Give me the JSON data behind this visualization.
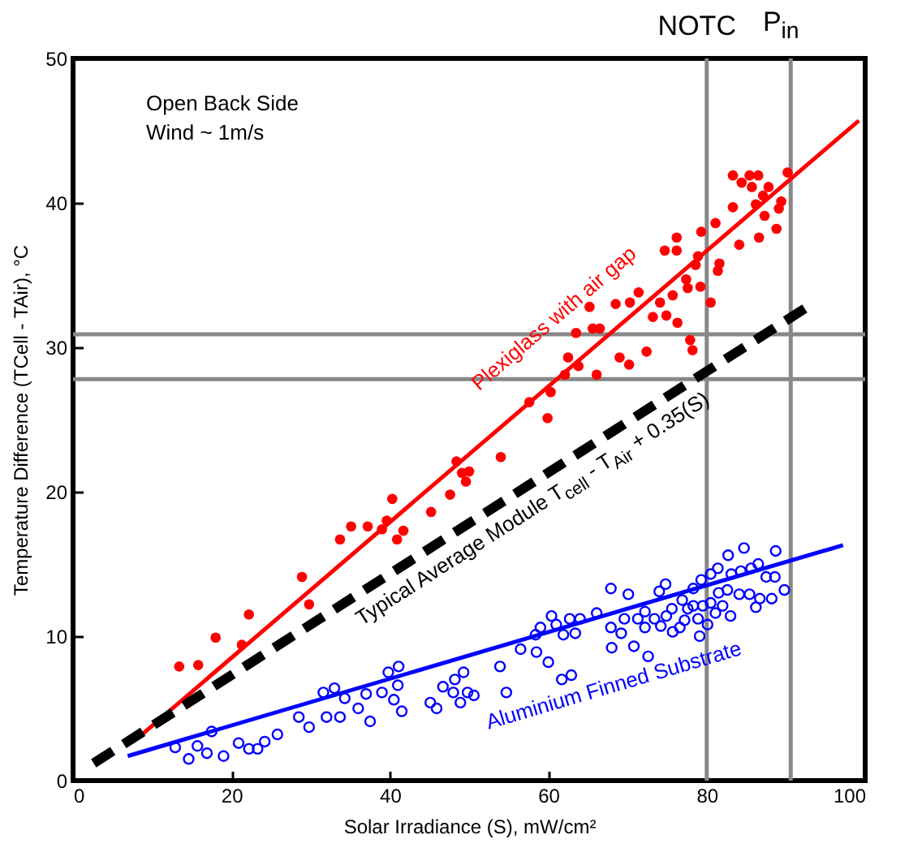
{
  "chart_data": {
    "type": "scatter",
    "xlabel": "Solar Irradiance (S), mW/cm²",
    "ylabel": "Temperature Difference (TCell - TAir), °C",
    "xlim": [
      0,
      100
    ],
    "ylim": [
      0,
      50
    ],
    "xticks": [
      0,
      20,
      40,
      60,
      80,
      100
    ],
    "yticks": [
      0,
      10,
      20,
      30,
      40,
      50
    ],
    "grid": false,
    "marker": "circle",
    "annotations": [
      "Open Back Side",
      "Wind ~ 1m/s"
    ],
    "ref_lines": [
      {
        "axis": "x",
        "value": 80,
        "label": "NOTC",
        "color": "#888888"
      },
      {
        "axis": "x",
        "value": 90.6,
        "label": "P$_{in}$",
        "color": "#888888"
      },
      {
        "axis": "y",
        "value": 30.9,
        "color": "#888888"
      },
      {
        "axis": "y",
        "value": 27.8,
        "color": "#888888"
      }
    ],
    "series": [
      {
        "color": "#ff0000",
        "x": [
          13.4,
          15.8,
          18.0,
          21.3,
          22.2,
          28.9,
          29.8,
          33.7,
          35.1,
          37.2,
          39.0,
          39.6,
          40.3,
          40.9,
          41.7,
          45.2,
          47.6,
          48.4,
          49.1,
          50,
          49.6,
          54,
          57.6,
          59.9,
          60.3,
          62.1,
          62.5,
          63.8,
          63.5,
          65.2,
          65.6,
          66.1,
          66.5,
          68.5,
          69.0,
          70.2,
          70.3,
          71.4,
          72.4,
          73.2,
          74.1,
          74.7,
          74.9,
          75.7,
          76.2,
          76.2,
          76.3,
          77.4,
          77.9,
          78.2,
          77.6,
          78.6,
          78.9,
          79.2,
          79.3,
          80.5,
          81.1,
          81.4,
          81.6,
          83.3,
          83.3,
          84.1,
          84.4,
          85.4,
          85.7,
          86.5,
          86.2,
          86.6,
          87.1,
          87.8,
          87.3,
          88.8,
          89.1,
          89.4,
          90.2
        ],
        "values": [
          7.9,
          8.0,
          9.9,
          9.4,
          11.5,
          14.1,
          12.2,
          16.7,
          17.6,
          17.6,
          17.4,
          18.0,
          19.5,
          16.7,
          17.3,
          18.6,
          19.8,
          22.1,
          21.3,
          21.4,
          20.7,
          22.4,
          26.2,
          25.1,
          26.9,
          28.1,
          29.3,
          28.7,
          31.0,
          32.8,
          31.3,
          28.1,
          31.3,
          33.0,
          29.3,
          28.8,
          33.1,
          33.8,
          29.7,
          32.1,
          33.1,
          36.7,
          32.2,
          33.6,
          37.6,
          36.7,
          31.7,
          34.7,
          30.5,
          29.8,
          34.1,
          35.7,
          36.3,
          34.2,
          38.0,
          33.1,
          38.6,
          35.3,
          35.8,
          41.9,
          39.7,
          37.1,
          41.4,
          41.9,
          41.1,
          41.9,
          39.9,
          37.6,
          40.5,
          41.1,
          39.1,
          38.2,
          39.6,
          40.1,
          42.1
        ]
      },
      {
        "color": "#0000ff",
        "x": [
          12.9,
          14.6,
          15.7,
          16.9,
          17.5,
          19.0,
          20.9,
          22.2,
          23.3,
          24.2,
          25.8,
          28.5,
          29.8,
          31.6,
          32.0,
          33.0,
          33.7,
          34.3,
          36.0,
          37.0,
          37.5,
          39.0,
          39.8,
          40.5,
          41.1,
          41.0,
          41.5,
          45.1,
          45.9,
          46.7,
          48.0,
          48.2,
          49.3,
          48.9,
          49.8,
          50.6,
          53.9,
          54.7,
          56.5,
          58.5,
          58.4,
          59.0,
          60.0,
          60.4,
          61.0,
          61.7,
          61.9,
          62.7,
          62.9,
          63.4,
          64.0,
          66.1,
          67.9,
          67.9,
          68.0,
          69.2,
          69.6,
          70.1,
          70.8,
          71.3,
          72.2,
          72.2,
          72.6,
          73.4,
          74.0,
          74.2,
          74.8,
          74.9,
          75.6,
          75.7,
          76.6,
          76.9,
          77.2,
          77.6,
          78.3,
          78.3,
          78.9,
          79.1,
          79.3,
          79.5,
          80.1,
          80.5,
          80.5,
          81.1,
          81.4,
          81.5,
          82.0,
          82.6,
          82.7,
          83.0,
          83.1,
          84.1,
          84.3,
          84.7,
          85.4,
          85.6,
          86.2,
          86.5,
          86.7,
          87.5,
          88.2,
          88.6,
          88.7,
          89.8
        ],
        "values": [
          2.3,
          1.5,
          2.4,
          1.9,
          3.4,
          1.7,
          2.6,
          2.2,
          2.2,
          2.7,
          3.2,
          4.4,
          3.7,
          6.1,
          4.4,
          6.4,
          4.4,
          5.7,
          5.0,
          6.0,
          4.1,
          6.1,
          7.5,
          5.6,
          7.9,
          6.6,
          4.8,
          5.4,
          5.0,
          6.5,
          6.1,
          7.0,
          7.5,
          5.4,
          6.1,
          5.9,
          7.9,
          6.1,
          9.1,
          8.9,
          10.1,
          10.6,
          8.2,
          11.4,
          10.8,
          7.0,
          10.1,
          11.2,
          7.3,
          10.2,
          11.2,
          11.6,
          13.3,
          10.6,
          9.2,
          10.2,
          11.2,
          12.9,
          9.3,
          11.2,
          11.7,
          10.6,
          8.6,
          11.2,
          13.1,
          10.7,
          13.6,
          11.4,
          11.9,
          10.3,
          10.6,
          12.5,
          11.1,
          11.9,
          13.3,
          12.1,
          11.2,
          10.0,
          13.9,
          12.1,
          10.8,
          14.3,
          12.3,
          11.6,
          14.7,
          13.0,
          12.1,
          13.2,
          15.6,
          11.4,
          14.3,
          12.9,
          14.5,
          16.1,
          12.9,
          14.7,
          12.0,
          15.0,
          12.6,
          14.1,
          12.6,
          14.1,
          15.9,
          13.2
        ]
      },
      {
        "type": "line",
        "name": "Plexiglass with air gap",
        "color": "#ff0000",
        "line_style": "solid",
        "marker": "none",
        "x": [
          8.5,
          99.2
        ],
        "values": [
          3.1,
          45.7
        ]
      },
      {
        "type": "line",
        "name": "Typical Average Module T$_{cell}$ - T$_{Air}$ + 0.35(S)",
        "color": "#000000",
        "line_style": "dashed",
        "marker": "none",
        "x": [
          2.6,
          93
        ],
        "values": [
          1.2,
          32.9
        ]
      },
      {
        "type": "line",
        "name": "Aluminium Finned Substrate",
        "color": "#0000ff",
        "line_style": "solid",
        "marker": "none",
        "x": [
          6.9,
          97.2
        ],
        "values": [
          1.7,
          16.3
        ]
      }
    ]
  }
}
